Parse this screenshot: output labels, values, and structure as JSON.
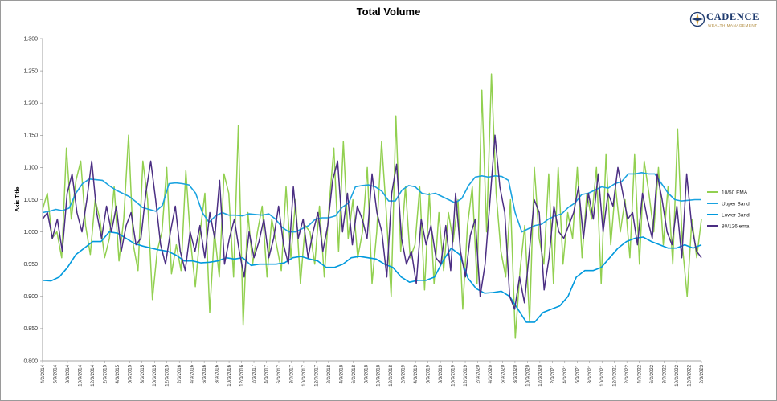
{
  "logo": {
    "name": "CADENCE",
    "tagline": "WEALTH MANAGEMENT",
    "icon": "compass-icon"
  },
  "chart_data": {
    "type": "line",
    "title": "Total Volume",
    "ylabel": "Axis Title",
    "xlabel": "",
    "ylim": [
      0.8,
      1.3
    ],
    "ytick_labels": [
      "0.800",
      "0.850",
      "0.900",
      "0.950",
      "1.000",
      "1.050",
      "1.100",
      "1.150",
      "1.200",
      "1.250",
      "1.300"
    ],
    "grid": false,
    "legend": "right",
    "x_tick_labels": [
      "4/3/2014",
      "6/3/2014",
      "8/3/2014",
      "10/3/2014",
      "12/3/2014",
      "2/3/2015",
      "4/3/2015",
      "6/3/2015",
      "8/3/2015",
      "10/3/2015",
      "12/3/2015",
      "2/3/2016",
      "4/3/2016",
      "6/3/2016",
      "8/3/2016",
      "10/3/2016",
      "12/3/2016",
      "2/3/2017",
      "4/3/2017",
      "6/3/2017",
      "8/3/2017",
      "10/3/2017",
      "12/3/2017",
      "2/3/2018",
      "4/3/2018",
      "6/3/2018",
      "8/3/2018",
      "10/3/2018",
      "12/3/2018",
      "2/3/2019",
      "4/3/2019",
      "6/3/2019",
      "8/3/2019",
      "10/3/2019",
      "12/3/2019",
      "2/3/2020",
      "4/3/2020",
      "6/3/2020",
      "8/3/2020",
      "10/3/2020",
      "12/3/2020",
      "2/3/2021",
      "4/3/2021",
      "6/3/2021",
      "8/3/2021",
      "10/3/2021",
      "12/3/2021",
      "2/3/2022",
      "4/3/2022",
      "6/3/2022",
      "8/3/2022",
      "10/3/2022",
      "12/3/2022",
      "2/3/2023"
    ],
    "series": [
      {
        "name": "10/50 EMA",
        "color": "#92d050",
        "values": [
          1.035,
          1.06,
          0.99,
          1.0,
          0.96,
          1.13,
          1.02,
          1.08,
          1.11,
          1.01,
          0.965,
          1.05,
          1.02,
          0.96,
          0.99,
          1.07,
          0.955,
          1.02,
          1.15,
          0.98,
          0.94,
          1.11,
          1.05,
          0.895,
          0.97,
          1.0,
          1.1,
          0.935,
          0.98,
          0.94,
          1.095,
          0.985,
          0.915,
          1.0,
          1.06,
          0.875,
          1.0,
          0.93,
          1.09,
          1.06,
          0.93,
          1.165,
          0.855,
          1.03,
          0.95,
          1.0,
          1.04,
          0.93,
          1.02,
          0.98,
          0.94,
          1.07,
          0.96,
          1.05,
          0.92,
          1.01,
          1.0,
          0.95,
          1.04,
          0.93,
          1.04,
          1.13,
          0.97,
          1.14,
          0.99,
          1.05,
          0.96,
          1.0,
          1.1,
          0.92,
          1.0,
          1.14,
          1.03,
          0.9,
          1.18,
          0.97,
          1.07,
          0.96,
          0.98,
          1.07,
          0.91,
          1.06,
          0.92,
          1.03,
          0.94,
          1.03,
          0.985,
          1.05,
          0.88,
          1.01,
          1.07,
          0.92,
          1.22,
          1.0,
          1.245,
          1.06,
          0.97,
          0.93,
          1.05,
          0.835,
          0.94,
          1.01,
          0.86,
          1.1,
          0.99,
          0.95,
          1.09,
          0.92,
          1.1,
          0.95,
          1.03,
          0.99,
          1.1,
          0.96,
          1.06,
          1.02,
          1.1,
          0.92,
          1.12,
          0.98,
          1.07,
          1.0,
          1.05,
          0.96,
          1.12,
          0.95,
          1.11,
          1.06,
          1.0,
          1.1,
          0.98,
          1.07,
          0.95,
          1.16,
          0.98,
          0.9,
          1.02,
          0.96,
          1.02
        ]
      },
      {
        "name": "Upper Band",
        "color": "#1aa3e0",
        "values": [
          1.03,
          1.032,
          1.035,
          1.033,
          1.037,
          1.06,
          1.075,
          1.082,
          1.081,
          1.08,
          1.072,
          1.065,
          1.06,
          1.055,
          1.047,
          1.038,
          1.035,
          1.032,
          1.041,
          1.075,
          1.076,
          1.075,
          1.073,
          1.06,
          1.03,
          1.015,
          1.025,
          1.03,
          1.026,
          1.026,
          1.025,
          1.028,
          1.027,
          1.026,
          1.028,
          1.02,
          1.007,
          1.0,
          1.0,
          1.005,
          1.01,
          1.02,
          1.022,
          1.022,
          1.025,
          1.038,
          1.045,
          1.07,
          1.072,
          1.073,
          1.07,
          1.063,
          1.048,
          1.048,
          1.065,
          1.072,
          1.07,
          1.06,
          1.058,
          1.06,
          1.055,
          1.05,
          1.045,
          1.052,
          1.072,
          1.085,
          1.087,
          1.085,
          1.087,
          1.086,
          1.08,
          1.03,
          1.0,
          1.005,
          1.01,
          1.012,
          1.02,
          1.025,
          1.028,
          1.038,
          1.045,
          1.058,
          1.06,
          1.065,
          1.07,
          1.068,
          1.075,
          1.078,
          1.09,
          1.09,
          1.092,
          1.09,
          1.09,
          1.075,
          1.06,
          1.05,
          1.048,
          1.049,
          1.05,
          1.05
        ]
      },
      {
        "name": "Lower Band",
        "color": "#0099dd",
        "values": [
          0.925,
          0.924,
          0.93,
          0.945,
          0.965,
          0.975,
          0.985,
          0.985,
          1.0,
          0.998,
          0.99,
          0.982,
          0.978,
          0.975,
          0.972,
          0.97,
          0.964,
          0.955,
          0.955,
          0.952,
          0.953,
          0.955,
          0.96,
          0.958,
          0.96,
          0.948,
          0.95,
          0.95,
          0.95,
          0.952,
          0.96,
          0.962,
          0.958,
          0.955,
          0.945,
          0.945,
          0.95,
          0.96,
          0.962,
          0.96,
          0.958,
          0.95,
          0.945,
          0.93,
          0.922,
          0.925,
          0.925,
          0.93,
          0.955,
          0.975,
          0.965,
          0.928,
          0.912,
          0.905,
          0.906,
          0.908,
          0.9,
          0.88,
          0.86,
          0.86,
          0.875,
          0.88,
          0.885,
          0.9,
          0.93,
          0.94,
          0.94,
          0.945,
          0.96,
          0.975,
          0.985,
          0.99,
          0.992,
          0.985,
          0.98,
          0.975,
          0.975,
          0.98,
          0.975,
          0.98
        ]
      },
      {
        "name": "80/126 ema",
        "color": "#4b2e83",
        "values": [
          1.02,
          1.03,
          0.99,
          1.02,
          0.97,
          1.06,
          1.09,
          1.03,
          1.0,
          1.05,
          1.11,
          1.03,
          0.99,
          1.04,
          1.0,
          1.04,
          0.97,
          1.01,
          1.03,
          0.98,
          0.99,
          1.06,
          1.11,
          1.05,
          0.98,
          0.95,
          1.0,
          1.04,
          0.97,
          0.94,
          1.0,
          0.97,
          1.01,
          0.96,
          1.03,
          0.99,
          1.08,
          0.95,
          0.99,
          1.02,
          0.97,
          0.93,
          1.0,
          0.96,
          0.985,
          1.02,
          0.96,
          0.99,
          1.04,
          0.98,
          0.95,
          1.07,
          0.99,
          1.02,
          0.96,
          1.0,
          1.03,
          0.97,
          1.01,
          1.08,
          1.11,
          1.0,
          1.06,
          0.98,
          1.04,
          1.02,
          0.99,
          1.09,
          1.03,
          1.0,
          0.93,
          1.06,
          1.105,
          0.99,
          0.95,
          0.97,
          0.92,
          1.02,
          0.98,
          1.01,
          0.96,
          0.95,
          1.01,
          0.94,
          1.06,
          0.97,
          0.93,
          0.995,
          1.02,
          0.9,
          0.95,
          1.05,
          1.15,
          1.07,
          1.03,
          0.9,
          0.88,
          0.93,
          0.89,
          0.97,
          1.05,
          1.03,
          0.91,
          0.96,
          1.04,
          1.0,
          0.99,
          1.01,
          1.03,
          1.07,
          0.99,
          1.06,
          1.02,
          1.09,
          1.0,
          1.06,
          1.04,
          1.1,
          1.06,
          1.02,
          1.03,
          0.98,
          1.06,
          1.02,
          0.99,
          1.09,
          1.05,
          1.0,
          0.98,
          1.04,
          0.96,
          1.09,
          1.01,
          0.97,
          0.96
        ]
      }
    ]
  }
}
